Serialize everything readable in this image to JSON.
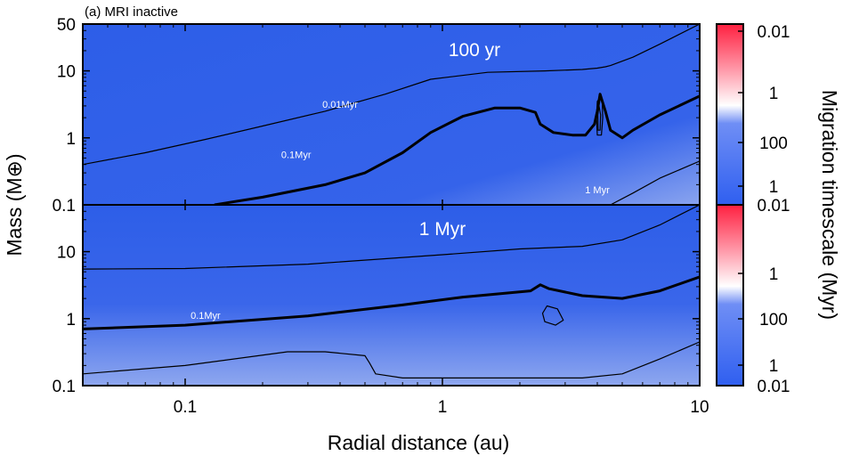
{
  "chart_data": {
    "type": "heatmap",
    "figure_label": "(a) MRI inactive",
    "xlabel": "Radial distance (au)",
    "ylabel": "Mass (M⊕)",
    "colorbar_label": "Migration timescale (Myr)",
    "xscale": "log",
    "yscale": "log",
    "xlim": [
      0.04,
      10
    ],
    "ylim": [
      0.1,
      50
    ],
    "x_ticks": [
      {
        "value": 0.1,
        "label": "0.1"
      },
      {
        "value": 1,
        "label": "1"
      },
      {
        "value": 10,
        "label": "10"
      }
    ],
    "y_ticks": [
      {
        "value": 0.1,
        "label": "0.1"
      },
      {
        "value": 1,
        "label": "1"
      },
      {
        "value": 10,
        "label": "10"
      },
      {
        "value": 50,
        "label": "50"
      }
    ],
    "y_ticks_lower": [
      {
        "value": 0.1,
        "label": "0.1"
      },
      {
        "value": 1,
        "label": "1"
      },
      {
        "value": 10,
        "label": "10"
      }
    ],
    "colorbar_ticks": [
      "0.01",
      "1",
      "100",
      "1",
      "0.01"
    ],
    "colors": {
      "background": "#2d5ee8",
      "low": "#2f5ff0",
      "mid": "#ffffff",
      "high": "#ff2040",
      "contour": "#000000"
    },
    "panels": [
      {
        "title": "100 yr",
        "contours": [
          {
            "level_label": "0.01Myr",
            "weight": "thin",
            "points": [
              [
                0.04,
                0.4
              ],
              [
                0.07,
                0.6
              ],
              [
                0.12,
                0.95
              ],
              [
                0.2,
                1.5
              ],
              [
                0.35,
                2.5
              ],
              [
                0.6,
                4.5
              ],
              [
                0.9,
                7.5
              ],
              [
                1.5,
                9.5
              ],
              [
                2.5,
                10
              ],
              [
                3.5,
                10.5
              ],
              [
                4.0,
                11
              ],
              [
                4.3,
                11.5
              ],
              [
                4.5,
                12
              ],
              [
                5.5,
                16
              ],
              [
                7,
                25
              ],
              [
                10,
                50
              ]
            ]
          },
          {
            "level_label": "0.1Myr",
            "weight": "thick",
            "points": [
              [
                0.13,
                0.1
              ],
              [
                0.2,
                0.13
              ],
              [
                0.35,
                0.2
              ],
              [
                0.5,
                0.3
              ],
              [
                0.7,
                0.6
              ],
              [
                0.9,
                1.2
              ],
              [
                1.2,
                2.1
              ],
              [
                1.6,
                2.8
              ],
              [
                2.0,
                2.8
              ],
              [
                2.3,
                2.4
              ],
              [
                2.4,
                1.6
              ],
              [
                2.7,
                1.2
              ],
              [
                3.2,
                1.1
              ],
              [
                3.6,
                1.1
              ],
              [
                3.9,
                1.6
              ],
              [
                4.0,
                2.5
              ],
              [
                4.1,
                4.5
              ],
              [
                4.3,
                2.5
              ],
              [
                4.5,
                1.3
              ],
              [
                5.0,
                1.0
              ],
              [
                5.5,
                1.3
              ],
              [
                7,
                2.2
              ],
              [
                10,
                4.2
              ]
            ]
          },
          {
            "level_label": "1 Myr",
            "weight": "thin",
            "points": [
              [
                4.5,
                0.1
              ],
              [
                5.5,
                0.15
              ],
              [
                7,
                0.25
              ],
              [
                10,
                0.45
              ]
            ]
          },
          {
            "level_label": "",
            "weight": "thin",
            "closed": true,
            "points": [
              [
                4.0,
                1.1
              ],
              [
                3.97,
                2.0
              ],
              [
                4.0,
                3.5
              ],
              [
                4.1,
                4.0
              ],
              [
                4.18,
                3.5
              ],
              [
                4.2,
                2.0
              ],
              [
                4.15,
                1.1
              ]
            ]
          },
          {
            "level_label": "",
            "weight": "thin",
            "closed": true,
            "points": [
              [
                4.03,
                1.3
              ],
              [
                4.02,
                2.2
              ],
              [
                4.06,
                3.0
              ],
              [
                4.12,
                2.2
              ],
              [
                4.1,
                1.3
              ]
            ]
          }
        ],
        "labels": [
          {
            "text": "0.01Myr",
            "x": 0.4,
            "y": 2.8
          },
          {
            "text": "0.1Myr",
            "x": 0.27,
            "y": 0.5
          },
          {
            "text": "1 Myr",
            "x": 4.0,
            "y": 0.15
          }
        ]
      },
      {
        "title": "1 Myr",
        "contours": [
          {
            "level_label": "",
            "weight": "thin",
            "points": [
              [
                0.04,
                5.5
              ],
              [
                0.1,
                5.6
              ],
              [
                0.3,
                6.5
              ],
              [
                1,
                9
              ],
              [
                2.0,
                11
              ],
              [
                3.5,
                12
              ],
              [
                5,
                15
              ],
              [
                7,
                25
              ],
              [
                10,
                50
              ]
            ]
          },
          {
            "level_label": "0.1Myr",
            "weight": "thick",
            "points": [
              [
                0.04,
                0.7
              ],
              [
                0.1,
                0.8
              ],
              [
                0.3,
                1.1
              ],
              [
                0.7,
                1.6
              ],
              [
                1.2,
                2.1
              ],
              [
                2.2,
                2.6
              ],
              [
                2.4,
                3.2
              ],
              [
                2.6,
                2.8
              ],
              [
                3.5,
                2.2
              ],
              [
                5,
                2.0
              ],
              [
                7,
                2.6
              ],
              [
                10,
                4.2
              ]
            ]
          },
          {
            "level_label": "",
            "weight": "thin",
            "closed": true,
            "points": [
              [
                2.45,
                1.2
              ],
              [
                2.55,
                1.55
              ],
              [
                2.8,
                1.4
              ],
              [
                2.95,
                0.95
              ],
              [
                2.75,
                0.8
              ],
              [
                2.5,
                0.9
              ]
            ]
          },
          {
            "level_label": "",
            "weight": "thin",
            "points": [
              [
                0.04,
                0.15
              ],
              [
                0.1,
                0.2
              ],
              [
                0.25,
                0.32
              ],
              [
                0.35,
                0.32
              ],
              [
                0.5,
                0.28
              ],
              [
                0.52,
                0.22
              ],
              [
                0.55,
                0.15
              ],
              [
                0.7,
                0.13
              ],
              [
                1,
                0.13
              ],
              [
                2.2,
                0.13
              ],
              [
                3.5,
                0.13
              ],
              [
                5,
                0.15
              ],
              [
                7,
                0.25
              ],
              [
                10,
                0.45
              ]
            ]
          }
        ],
        "labels": [
          {
            "text": "0.1Myr",
            "x": 0.12,
            "y": 1.0
          }
        ]
      }
    ]
  }
}
